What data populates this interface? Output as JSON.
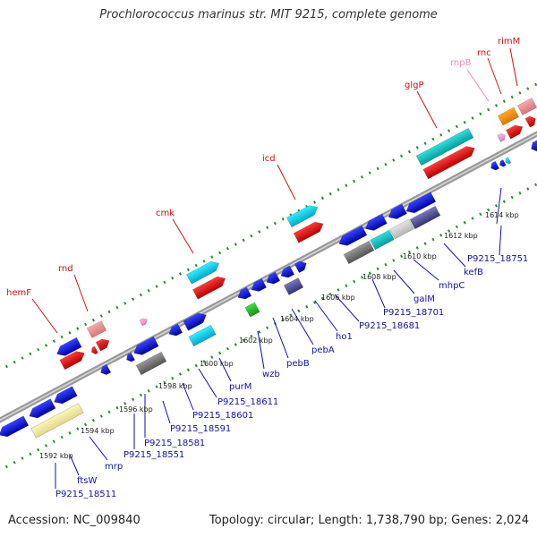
{
  "title": "Prochlorococcus marinus str. MIT 9215, complete genome",
  "footer": {
    "accession": "Accession: NC_009840",
    "summary": "Topology: circular; Length: 1,738,790 bp; Genes: 2,024"
  },
  "colors": {
    "backbone": "#9a9a9a",
    "ticks": "#2e8b2e",
    "top_label": "#cc1111",
    "top_label_pink": "#ee88bb",
    "bottom_label": "#1111aa",
    "kbp_label": "#222222"
  },
  "kbp_labels": [
    "1592 kbp",
    "1594 kbp",
    "1596 kbp",
    "1598 kbp",
    "1600 kbp",
    "1602 kbp",
    "1604 kbp",
    "1606 kbp",
    "1608 kbp",
    "1610 kbp",
    "1612 kbp",
    "1614 kbp"
  ],
  "top_labels": [
    {
      "text": "hemF",
      "color": "red"
    },
    {
      "text": "rnd",
      "color": "red"
    },
    {
      "text": "cmk",
      "color": "red"
    },
    {
      "text": "icd",
      "color": "red"
    },
    {
      "text": "glgP",
      "color": "red"
    },
    {
      "text": "rnpB",
      "color": "pink"
    },
    {
      "text": "rnc",
      "color": "red"
    },
    {
      "text": "rimM",
      "color": "red"
    }
  ],
  "bottom_labels": [
    "P9215_18511",
    "ftsW",
    "mrp",
    "P9215_18551",
    "P9215_18581",
    "P9215_18591",
    "P9215_18601",
    "P9215_18611",
    "purM",
    "wzb",
    "pebB",
    "pebA",
    "ho1",
    "P9215_18681",
    "P9215_18701",
    "galM",
    "mhpC",
    "kefB",
    "P9215_18751"
  ]
}
